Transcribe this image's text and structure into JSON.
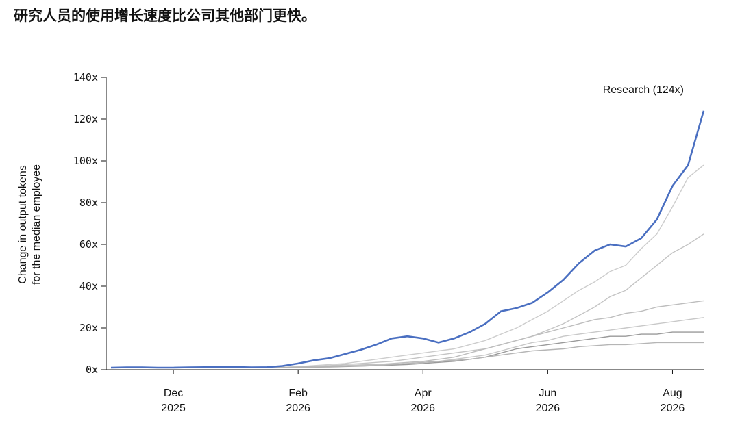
{
  "chart_data": {
    "type": "line",
    "title": "研究人员的使用增长速度比公司其他部门更快。",
    "ylabel": [
      "Change in output tokens",
      "for the median employee"
    ],
    "xlim": [
      0,
      9.5
    ],
    "xticks": [
      {
        "value": 1,
        "label": "Dec",
        "year": "2025"
      },
      {
        "value": 3,
        "label": "Feb",
        "year": "2026"
      },
      {
        "value": 5,
        "label": "Apr",
        "year": "2026"
      },
      {
        "value": 7,
        "label": "Jun",
        "year": "2026"
      },
      {
        "value": 9,
        "label": "Aug",
        "year": "2026"
      }
    ],
    "ylim": [
      0,
      140
    ],
    "yticks": [
      {
        "value": 0,
        "label": "0x"
      },
      {
        "value": 20,
        "label": "20x"
      },
      {
        "value": 40,
        "label": "40x"
      },
      {
        "value": 60,
        "label": "60x"
      },
      {
        "value": 80,
        "label": "80x"
      },
      {
        "value": 100,
        "label": "100x"
      },
      {
        "value": 120,
        "label": "120x"
      },
      {
        "value": 140,
        "label": "140x"
      }
    ],
    "x": [
      0,
      0.25,
      0.5,
      0.75,
      1,
      1.25,
      1.5,
      1.75,
      2,
      2.25,
      2.5,
      2.75,
      3,
      3.25,
      3.5,
      3.75,
      4,
      4.25,
      4.5,
      4.75,
      5,
      5.25,
      5.5,
      5.75,
      6,
      6.25,
      6.5,
      6.75,
      7,
      7.25,
      7.5,
      7.75,
      8,
      8.25,
      8.5,
      8.75,
      9,
      9.25,
      9.5
    ],
    "series": [
      {
        "color": "#cccccc",
        "values": [
          1,
          1,
          1,
          1,
          1,
          1,
          1,
          1,
          1,
          1,
          1,
          1.2,
          1.5,
          2,
          2.5,
          3,
          4,
          5,
          6,
          7,
          8,
          9,
          10,
          12,
          14,
          17,
          20,
          24,
          28,
          33,
          38,
          42,
          47,
          50,
          58,
          65,
          78,
          92,
          98
        ]
      },
      {
        "color": "#c4c4c4",
        "values": [
          1,
          1,
          1,
          1,
          1,
          1,
          1,
          1,
          1,
          1,
          1,
          1.1,
          1.3,
          1.6,
          2,
          2.5,
          3,
          3.5,
          4,
          5,
          6,
          7,
          8,
          9,
          10,
          12,
          14,
          16,
          19,
          22,
          26,
          30,
          35,
          38,
          44,
          50,
          56,
          60,
          65
        ]
      },
      {
        "color": "#bdbdbd",
        "values": [
          1,
          1,
          1,
          1,
          1,
          1,
          1,
          1,
          1,
          1,
          1,
          1,
          1.2,
          1.5,
          1.8,
          2,
          2.3,
          2.5,
          3,
          3.5,
          4,
          5,
          6,
          8,
          10,
          12,
          14,
          16,
          18,
          20,
          22,
          24,
          25,
          27,
          28,
          30,
          31,
          32,
          33
        ]
      },
      {
        "color": "#c8c8c8",
        "values": [
          1,
          1,
          1,
          1,
          1,
          1,
          1,
          1,
          1,
          1,
          1,
          1,
          1.1,
          1.3,
          1.5,
          1.7,
          2,
          2.2,
          2.5,
          3,
          3.5,
          4,
          5,
          6,
          7,
          9,
          11,
          13,
          14,
          16,
          17,
          18,
          19,
          20,
          21,
          22,
          23,
          24,
          25
        ]
      },
      {
        "color": "#9a9a9a",
        "values": [
          1,
          1,
          1,
          1,
          1,
          1,
          1,
          1,
          1,
          1,
          1,
          1,
          1.1,
          1.2,
          1.3,
          1.5,
          1.7,
          2,
          2.2,
          2.5,
          3,
          3.5,
          4,
          5,
          6,
          8,
          10,
          11,
          12,
          13,
          14,
          15,
          16,
          16,
          17,
          17,
          18,
          18,
          18
        ]
      },
      {
        "color": "#b5b5b5",
        "values": [
          1,
          1,
          1,
          1,
          1,
          1,
          1,
          1,
          1,
          1,
          1,
          1,
          1.1,
          1.2,
          1.4,
          1.6,
          1.8,
          2,
          2.5,
          3,
          3.5,
          4,
          4.5,
          5,
          6,
          7,
          8,
          9,
          9.5,
          10,
          11,
          11.5,
          12,
          12,
          12.5,
          13,
          13,
          13,
          13
        ]
      },
      {
        "name": "Research (124x)",
        "color": "#4a6fc1",
        "values": [
          1,
          1.1,
          1.1,
          1,
          1,
          1.1,
          1.2,
          1.3,
          1.3,
          1.1,
          1.2,
          1.8,
          3,
          4.5,
          5.5,
          7.5,
          9.5,
          12,
          15,
          16,
          15,
          13,
          15,
          18,
          22,
          28,
          29.5,
          32,
          37,
          43,
          51,
          57,
          60,
          59,
          63,
          72,
          88,
          98,
          124
        ]
      }
    ]
  }
}
